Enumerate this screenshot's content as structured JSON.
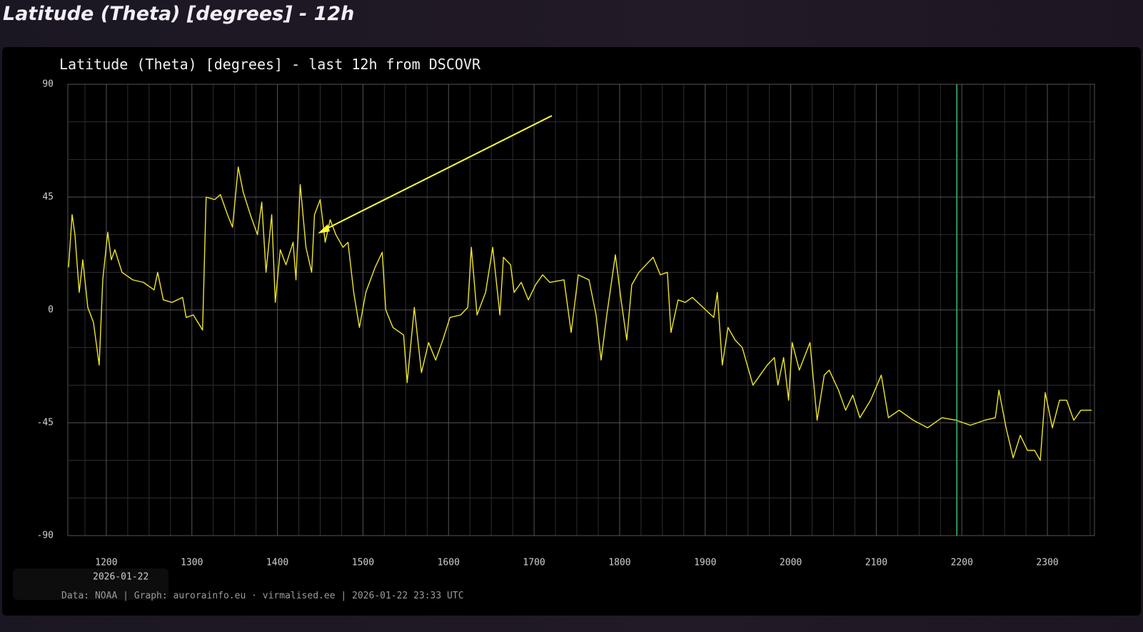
{
  "page_title": "Latitude (Theta) [degrees] - 12h",
  "chart_data": {
    "type": "line",
    "title": "Latitude (Theta) [degrees] - last 12h from DSCOVR",
    "x_date_label": "2026-01-22",
    "source": "Data: NOAA | Graph: aurorainfo.eu · virmalised.ee | 2026-01-22 23:33 UTC",
    "xlim": [
      693,
      1413
    ],
    "ylim": [
      -90,
      90
    ],
    "xticks": [
      {
        "value": 720,
        "label": "1200"
      },
      {
        "value": 780,
        "label": "1300"
      },
      {
        "value": 840,
        "label": "1400"
      },
      {
        "value": 900,
        "label": "1500"
      },
      {
        "value": 960,
        "label": "1600"
      },
      {
        "value": 1020,
        "label": "1700"
      },
      {
        "value": 1080,
        "label": "1800"
      },
      {
        "value": 1140,
        "label": "1900"
      },
      {
        "value": 1200,
        "label": "2000"
      },
      {
        "value": 1260,
        "label": "2100"
      },
      {
        "value": 1320,
        "label": "2200"
      },
      {
        "value": 1380,
        "label": "2300"
      }
    ],
    "yticks": [
      90,
      45,
      0,
      -45,
      -90
    ],
    "x_minor_grid": [
      705,
      735,
      750,
      765,
      795,
      810,
      825,
      855,
      870,
      885,
      915,
      930,
      945,
      975,
      990,
      1005,
      1035,
      1050,
      1065,
      1095,
      1110,
      1125,
      1155,
      1170,
      1185,
      1215,
      1230,
      1245,
      1275,
      1290,
      1305,
      1335,
      1350,
      1365,
      1395,
      1410
    ],
    "y_minor_grid": [
      75,
      60,
      30,
      15,
      -15,
      -30,
      -60,
      -75
    ],
    "grid": true,
    "marker_line": {
      "x": 1316.5,
      "color": "#3fbf6f"
    },
    "series": [
      {
        "name": "Latitude",
        "color": "#f0e62a",
        "x": [
          693.5,
          696,
          698,
          701,
          703.5,
          707,
          711,
          715,
          717.5,
          721,
          723.5,
          726,
          731,
          738.5,
          746,
          753.5,
          756,
          760,
          766,
          773.5,
          776,
          781,
          787.5,
          790,
          796,
          800,
          805,
          808.5,
          812.5,
          816,
          821,
          826,
          829,
          832,
          836,
          838.5,
          842,
          846,
          851,
          853,
          856,
          860,
          864,
          866,
          870,
          873.5,
          877,
          881,
          886,
          889.5,
          893.5,
          897.5,
          902,
          908.5,
          913.5,
          916,
          921,
          928.5,
          931,
          936,
          941,
          946,
          951,
          956,
          961,
          968.5,
          973.5,
          976,
          980,
          986,
          991,
          996,
          998.5,
          1003.5,
          1006,
          1011,
          1016,
          1021,
          1026,
          1031,
          1041,
          1046,
          1051,
          1058.5,
          1063.5,
          1067,
          1071,
          1077,
          1081,
          1085,
          1088.5,
          1093.5,
          1098.5,
          1103.5,
          1108.5,
          1113.5,
          1116,
          1121,
          1126,
          1131,
          1138.5,
          1146,
          1148.5,
          1152,
          1156,
          1161,
          1166,
          1173.5,
          1178.5,
          1183.5,
          1188.5,
          1191,
          1195,
          1198.5,
          1201,
          1206,
          1213.5,
          1218.5,
          1223.5,
          1227,
          1233.5,
          1238.5,
          1243.5,
          1248.5,
          1256,
          1263.5,
          1268.5,
          1276,
          1286,
          1296,
          1306,
          1316,
          1326,
          1336,
          1343.5,
          1346,
          1351,
          1356,
          1361,
          1366,
          1371,
          1375,
          1378.5,
          1383.5,
          1388.5,
          1393.5,
          1398.5,
          1403.5,
          1411
        ],
        "values": [
          17,
          38,
          30,
          7,
          20,
          1,
          -5,
          -22,
          12,
          31,
          20,
          24,
          15,
          12,
          11,
          8,
          15,
          4,
          3,
          5,
          -3,
          -2,
          -8,
          45,
          44,
          46,
          38,
          33,
          57,
          47,
          38,
          30,
          43,
          15,
          38,
          3,
          24,
          18,
          27,
          12,
          50,
          25,
          15,
          38,
          44,
          27,
          36,
          30,
          25,
          27,
          7,
          -7,
          7,
          17,
          23,
          0,
          -7,
          -10,
          -29,
          1,
          -25,
          -13,
          -20,
          -12,
          -3,
          -2,
          1,
          25,
          -2,
          7,
          25,
          -2,
          21,
          18,
          7,
          11,
          4,
          10,
          14,
          11,
          12,
          -9,
          14,
          12,
          -2,
          -20,
          -2,
          22,
          4,
          -12,
          10,
          15,
          18,
          21,
          14,
          15,
          -9,
          4,
          3,
          5,
          1,
          -3,
          7,
          -22,
          -7,
          -12,
          -15,
          -30,
          -26,
          -22,
          -19,
          -30,
          -19,
          -36,
          -13,
          -24,
          -13,
          -44,
          -26,
          -24,
          -32,
          -40,
          -34,
          -43,
          -36,
          -26,
          -43,
          -40,
          -44,
          -47,
          -43,
          -44,
          -46,
          -44,
          -43,
          -32,
          -47,
          -59,
          -50,
          -56,
          -56,
          -60,
          -33,
          -47,
          -36,
          -36,
          -44,
          -40,
          -40
        ]
      }
    ]
  }
}
